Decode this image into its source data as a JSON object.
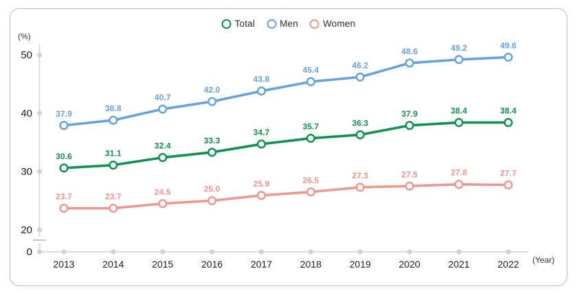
{
  "chart_data": {
    "type": "line",
    "title": "",
    "categories": [
      "2013",
      "2014",
      "2015",
      "2016",
      "2017",
      "2018",
      "2019",
      "2020",
      "2021",
      "2022"
    ],
    "series": [
      {
        "name": "Total",
        "color": "#0f9251",
        "values": [
          30.6,
          31.1,
          32.4,
          33.3,
          34.7,
          35.7,
          36.3,
          37.9,
          38.4,
          38.4
        ]
      },
      {
        "name": "Men",
        "color": "#64a3e0",
        "values": [
          37.9,
          38.8,
          40.7,
          42.0,
          43.8,
          45.4,
          46.2,
          48.6,
          49.2,
          49.6
        ]
      },
      {
        "name": "Women",
        "color": "#f2958c",
        "values": [
          23.7,
          23.7,
          24.5,
          25.0,
          25.9,
          26.5,
          27.3,
          27.5,
          27.8,
          27.7
        ]
      }
    ],
    "legend_order": [
      "Total",
      "Men",
      "Women"
    ],
    "ylabel": "(%)",
    "xlabel": "(Year)",
    "yticks": [
      50,
      40,
      30,
      20,
      0
    ],
    "axis_break": true,
    "grid": false,
    "legend_position": "top-center",
    "marker": "open-circle",
    "axis_color": "#d9dbde",
    "axis_dot_color": "#cfd2d6"
  }
}
